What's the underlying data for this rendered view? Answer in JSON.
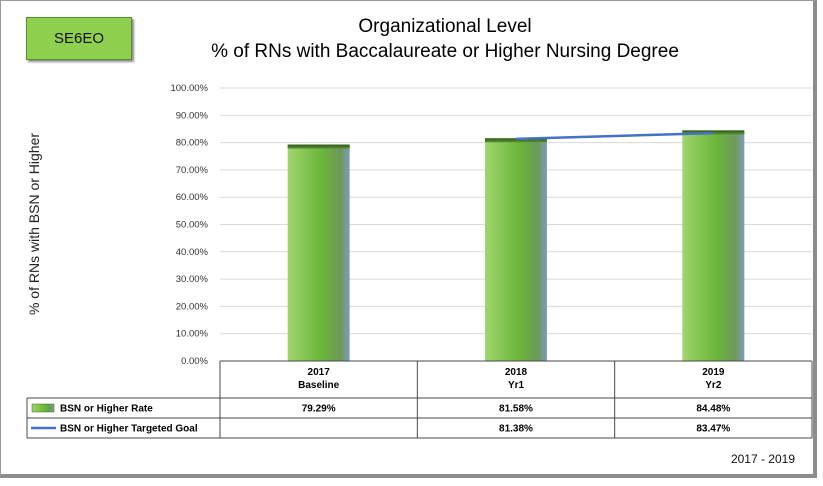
{
  "badge": "SE6EO",
  "title_line1": "Organizational  Level",
  "title_line2": "% of RNs with Baccalaureate or Higher Nursing Degree",
  "date_range": "2017 - 2019",
  "chart_data": {
    "type": "bar",
    "title": "Organizational  Level\n% of RNs with Baccalaureate or Higher Nursing Degree",
    "ylabel": "% of RNs with BSN or Higher",
    "xlabel": "",
    "ylim": [
      0,
      100
    ],
    "yticks": [
      "0.00%",
      "10.00%",
      "20.00%",
      "30.00%",
      "40.00%",
      "50.00%",
      "60.00%",
      "70.00%",
      "80.00%",
      "90.00%",
      "100.00%"
    ],
    "categories": [
      [
        "2017",
        "Baseline"
      ],
      [
        "2018",
        "Yr1"
      ],
      [
        "2019",
        "Yr2"
      ]
    ],
    "grid": true,
    "legend": "data-table",
    "series": [
      {
        "name": "BSN or Higher  Rate",
        "kind": "bar",
        "color": "#6bb53a",
        "values": [
          79.29,
          81.58,
          84.48
        ],
        "labels": [
          "79.29%",
          "81.58%",
          "84.48%"
        ]
      },
      {
        "name": "BSN or Higher Targeted Goal",
        "kind": "line",
        "color": "#4472c4",
        "values": [
          null,
          81.38,
          83.47
        ],
        "labels": [
          "",
          "81.38%",
          "83.47%"
        ]
      }
    ]
  }
}
